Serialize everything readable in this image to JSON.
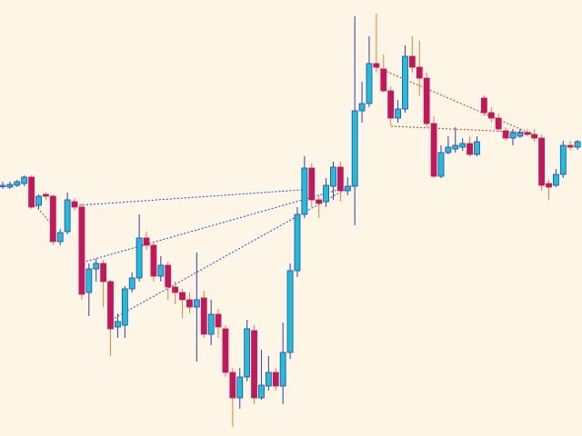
{
  "chart_data": {
    "type": "candlestick",
    "open": [
      275,
      274,
      276,
      278,
      285,
      254,
      266,
      264,
      214,
      225,
      258,
      252,
      158,
      184,
      190,
      170,
      120,
      122,
      162,
      174,
      218,
      210,
      176,
      188,
      164,
      158,
      150,
      142,
      152,
      112,
      134,
      118,
      70,
      42,
      65,
      116,
      42,
      55,
      70,
      55,
      92,
      182,
      244,
      295,
      260,
      258,
      275,
      296,
      270,
      275,
      358,
      366,
      410,
      404,
      380,
      350,
      360,
      418,
      406,
      394,
      344,
      286,
      312,
      316,
      318,
      322,
      310,
      372,
      356,
      350,
      336,
      328,
      330,
      334,
      332,
      328,
      278,
      276,
      288,
      320,
      318
    ],
    "close": [
      276,
      277,
      280,
      285,
      252,
      264,
      264,
      214,
      224,
      260,
      252,
      156,
      184,
      190,
      170,
      118,
      126,
      162,
      174,
      218,
      210,
      176,
      188,
      164,
      158,
      150,
      142,
      150,
      112,
      134,
      120,
      70,
      42,
      65,
      118,
      42,
      56,
      70,
      55,
      92,
      182,
      244,
      295,
      260,
      256,
      276,
      296,
      270,
      275,
      358,
      366,
      410,
      406,
      380,
      350,
      360,
      418,
      406,
      394,
      344,
      286,
      312,
      318,
      320,
      322,
      310,
      324,
      356,
      350,
      338,
      328,
      334,
      334,
      332,
      328,
      276,
      274,
      288,
      320,
      318,
      324
    ],
    "high": [
      280,
      280,
      282,
      287,
      287,
      266,
      268,
      266,
      228,
      268,
      262,
      256,
      190,
      195,
      194,
      172,
      135,
      165,
      180,
      244,
      225,
      214,
      198,
      192,
      170,
      162,
      158,
      202,
      160,
      150,
      140,
      122,
      75,
      75,
      128,
      122,
      95,
      88,
      75,
      125,
      190,
      252,
      308,
      300,
      265,
      284,
      302,
      302,
      285,
      462,
      390,
      440,
      465,
      420,
      385,
      370,
      430,
      440,
      435,
      400,
      352,
      320,
      330,
      340,
      328,
      330,
      330,
      375,
      362,
      355,
      340,
      338,
      338,
      338,
      338,
      332,
      282,
      294,
      325,
      325,
      326
    ],
    "low": [
      272,
      272,
      274,
      275,
      250,
      250,
      260,
      210,
      210,
      222,
      248,
      150,
      132,
      170,
      142,
      88,
      108,
      108,
      158,
      170,
      205,
      170,
      170,
      150,
      145,
      130,
      135,
      82,
      108,
      100,
      108,
      65,
      10,
      30,
      60,
      35,
      40,
      50,
      50,
      35,
      85,
      175,
      240,
      252,
      240,
      252,
      260,
      258,
      265,
      232,
      345,
      362,
      400,
      378,
      342,
      345,
      356,
      400,
      375,
      340,
      284,
      284,
      310,
      312,
      314,
      308,
      308,
      352,
      345,
      335,
      325,
      320,
      328,
      330,
      324,
      270,
      260,
      274,
      284,
      315,
      315
    ],
    "ylim": [
      0,
      480
    ],
    "up_color": "#1fbfd6",
    "up_wick_color": "#2a3fb0",
    "down_color": "#c2185b",
    "down_wick_color": "#e8803a"
  }
}
